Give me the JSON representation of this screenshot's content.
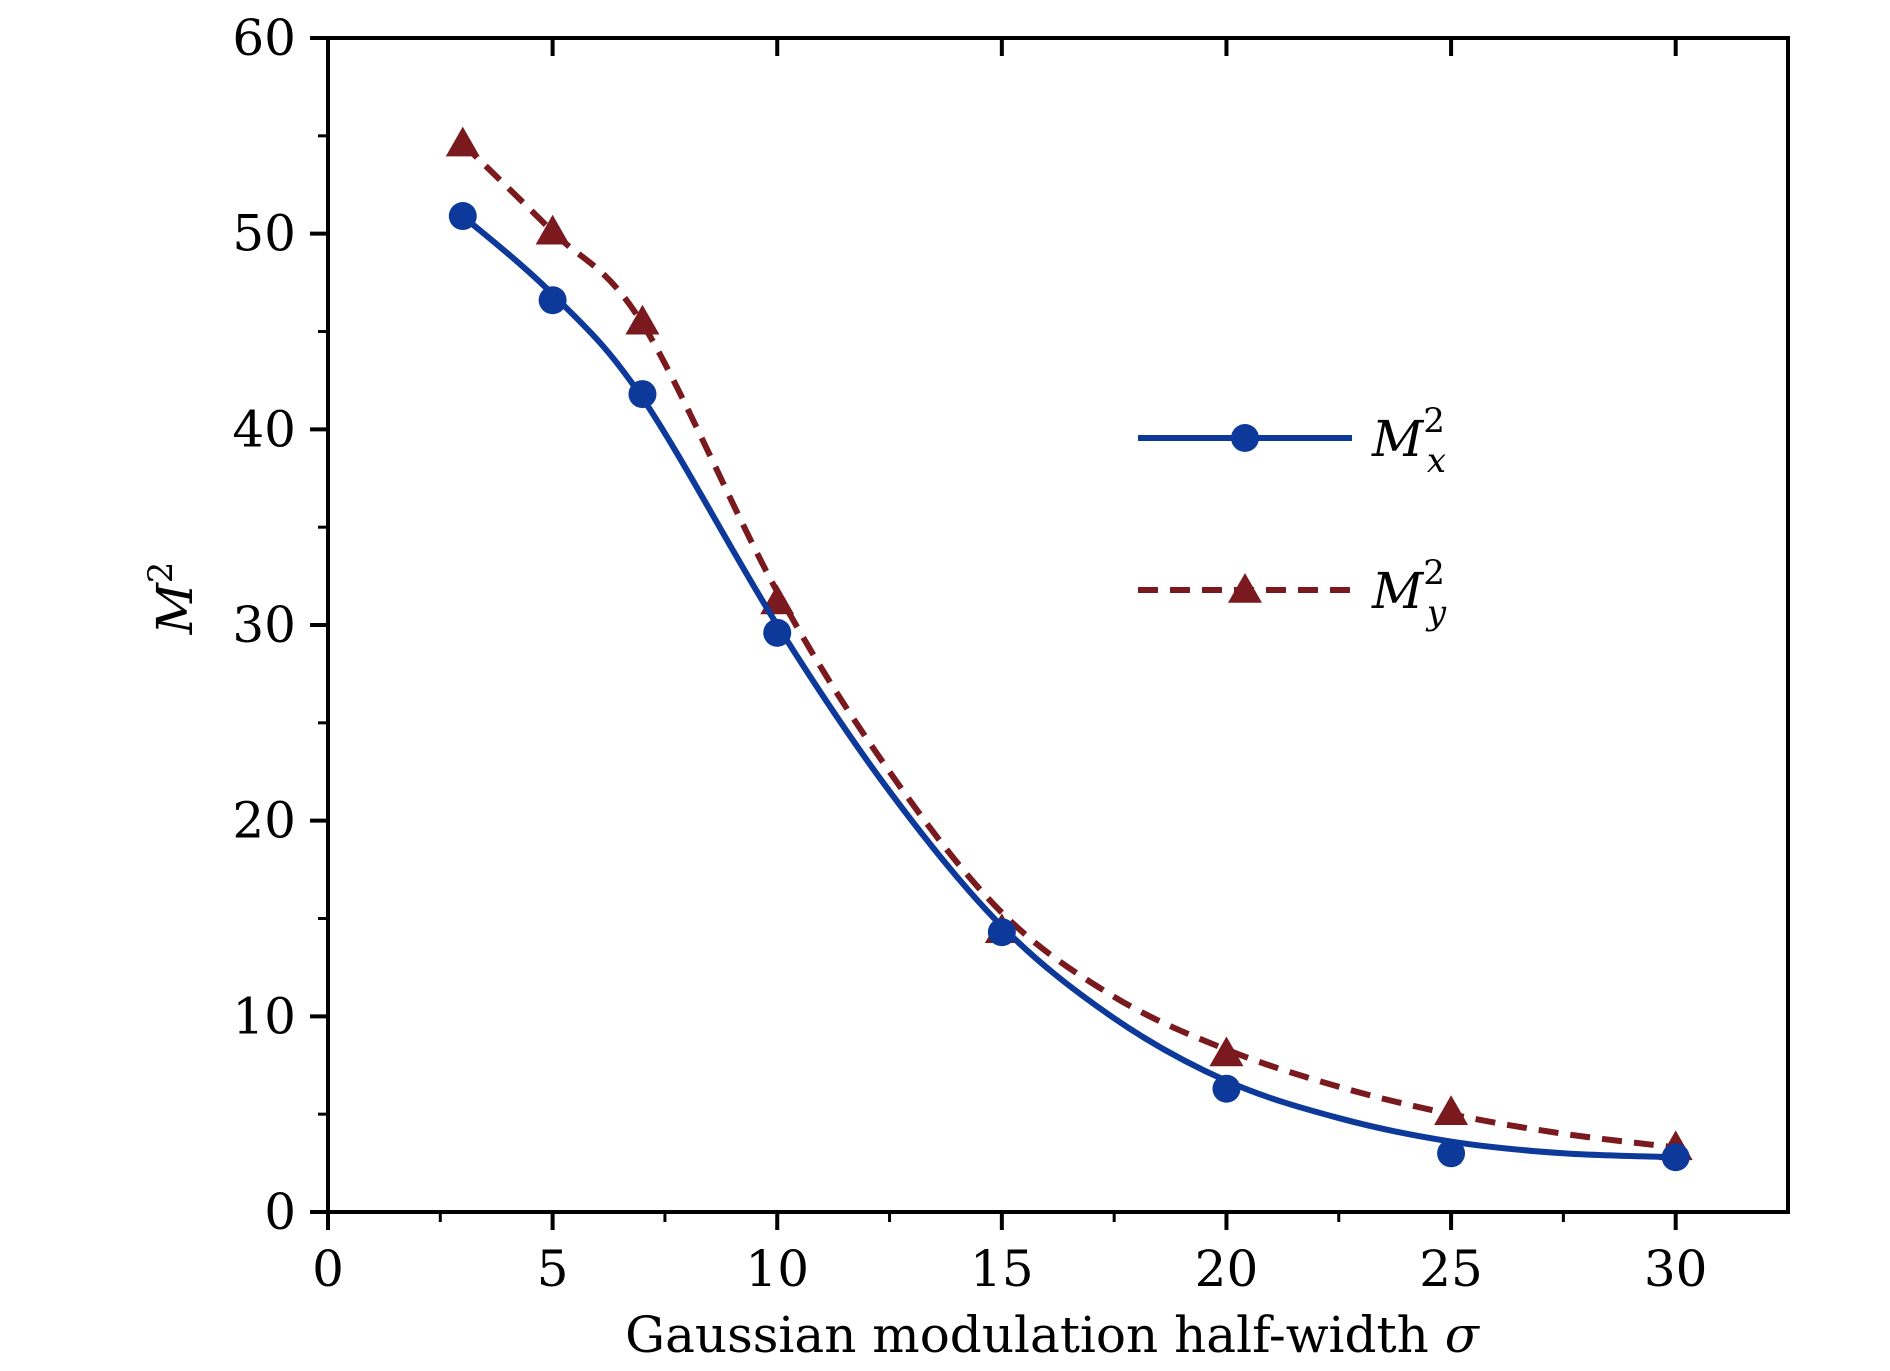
{
  "chart_data": {
    "type": "line",
    "title": "",
    "xlabel": "Gaussian modulation half-width ",
    "xlabel_symbol": "σ",
    "ylabel_main": "M",
    "ylabel_sup": "2",
    "xlim": [
      0,
      32.5
    ],
    "ylim": [
      0,
      60
    ],
    "xticks": [
      0,
      5,
      10,
      15,
      20,
      25,
      30
    ],
    "yticks": [
      0,
      10,
      20,
      30,
      40,
      50,
      60
    ],
    "xtick_labels": [
      "0",
      "5",
      "10",
      "15",
      "20",
      "25",
      "30"
    ],
    "ytick_labels": [
      "0",
      "10",
      "20",
      "30",
      "40",
      "50",
      "60"
    ],
    "legend_position": "right-middle",
    "series": [
      {
        "name": "M",
        "name_sup": "2",
        "name_sub": "x",
        "color": "#0d3a9a",
        "line": "solid",
        "marker": "circle",
        "x": [
          3,
          5,
          7,
          10,
          15,
          20,
          25,
          30
        ],
        "y": [
          50.9,
          46.6,
          41.8,
          29.6,
          14.3,
          6.3,
          3.0,
          2.8
        ],
        "fit_x": [
          3,
          5,
          7,
          10,
          12.5,
          15,
          17.5,
          20,
          22.5,
          25,
          27.5,
          30
        ],
        "fit_y": [
          50.9,
          46.9,
          41.6,
          30.0,
          21.5,
          14.6,
          9.9,
          6.7,
          4.8,
          3.6,
          3.0,
          2.8
        ]
      },
      {
        "name": "M",
        "name_sup": "2",
        "name_sub": "y",
        "color": "#7a1a1f",
        "line": "dashed",
        "marker": "triangle",
        "x": [
          3,
          5,
          7,
          10,
          15,
          20,
          25,
          30
        ],
        "y": [
          54.6,
          50.1,
          45.5,
          31.2,
          14.4,
          8.1,
          5.1,
          3.3
        ],
        "fit_x": [
          3,
          5,
          7,
          10,
          12.5,
          15,
          17.5,
          20,
          22.5,
          25,
          27.5,
          30
        ],
        "fit_y": [
          54.6,
          50.1,
          45.4,
          31.7,
          22.5,
          15.3,
          11.0,
          8.3,
          6.4,
          5.0,
          4.0,
          3.3
        ]
      }
    ]
  }
}
